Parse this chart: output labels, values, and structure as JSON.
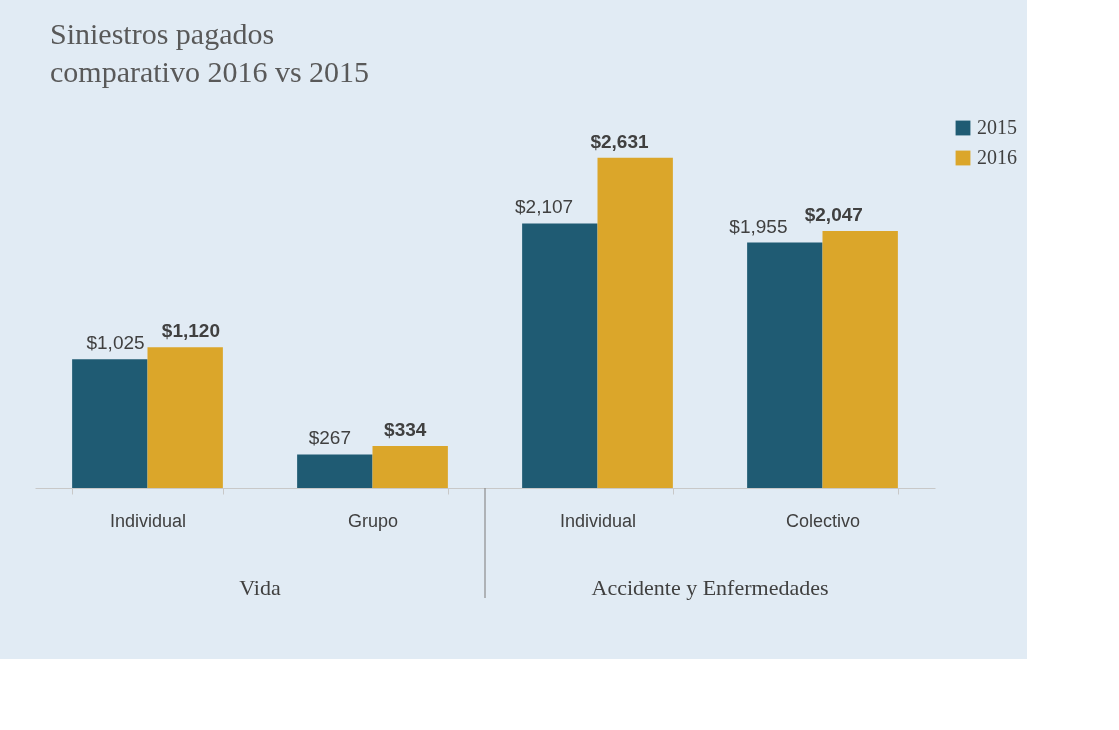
{
  "chart_data": {
    "type": "bar",
    "title": "Siniestros pagados\ncomparativo 2016 vs 2015",
    "categories": [
      "Individual",
      "Grupo",
      "Individual",
      "Colectivo"
    ],
    "series": [
      {
        "name": "2015",
        "color": "#1f5b73",
        "values": [
          1025,
          267,
          2107,
          1955
        ],
        "value_labels": [
          "$1,025",
          "$267",
          "$2,107",
          "$1,955"
        ]
      },
      {
        "name": "2016",
        "color": "#dba62a",
        "values": [
          1120,
          334,
          2631,
          2047
        ],
        "value_labels": [
          "$1,120",
          "$334",
          "$2,631",
          "$2,047"
        ]
      }
    ],
    "annotations": [
      "Vida",
      "Accidente y Enfermedades"
    ],
    "legend": "right",
    "grid": false
  }
}
